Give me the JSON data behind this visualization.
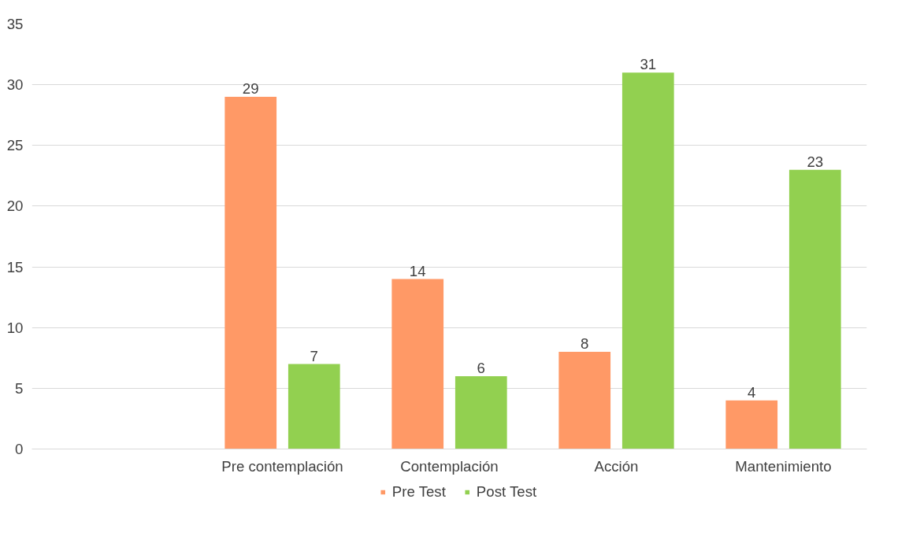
{
  "chart_data": {
    "type": "bar",
    "categories": [
      null,
      "Pre contemplación",
      "Contemplación",
      "Acción",
      "Mantenimiento"
    ],
    "series": [
      {
        "name": "Pre Test",
        "color": "#ff9966",
        "values": [
          null,
          29,
          14,
          8,
          4
        ]
      },
      {
        "name": "Post Test",
        "color": "#92d050",
        "values": [
          null,
          7,
          6,
          31,
          23
        ]
      }
    ],
    "ylim": [
      0,
      35
    ],
    "yticks": [
      0,
      5,
      10,
      15,
      20,
      25,
      30,
      35
    ],
    "grid": "y",
    "legend": "bottom",
    "data_labels": true
  }
}
